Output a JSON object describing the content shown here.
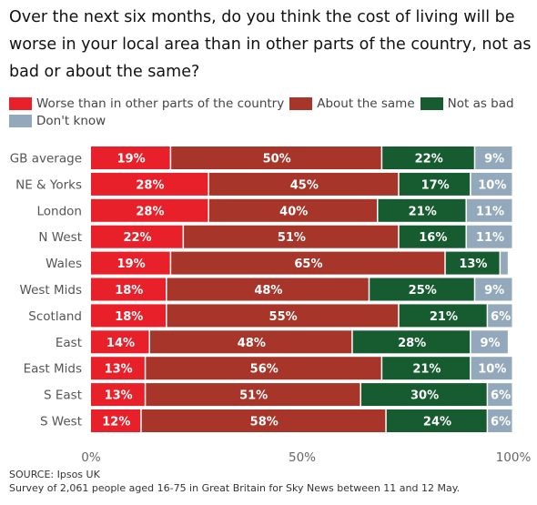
{
  "title": "Over the next six months, do you think the cost of living will be worse in your local area than in other parts of the country, not as bad or about the same?",
  "source_line": "SOURCE: Ipsos UK",
  "note_line": "Survey of 2,061 people aged 16-75 in Great Britain for Sky News between 11 and 12 May.",
  "chart_data": {
    "type": "bar",
    "orientation": "horizontal",
    "stacked": true,
    "categories": [
      "GB average",
      "NE & Yorks",
      "London",
      "N West",
      "Wales",
      "West Mids",
      "Scotland",
      "East",
      "East Mids",
      "S East",
      "S West"
    ],
    "series": [
      {
        "name": "Worse than in other parts of the country",
        "color": "#e8202a",
        "values": [
          19,
          28,
          28,
          22,
          19,
          18,
          18,
          14,
          13,
          13,
          12
        ],
        "labels": [
          "19%",
          "28%",
          "28%",
          "22%",
          "19%",
          "18%",
          "18%",
          "14%",
          "13%",
          "13%",
          "12%"
        ]
      },
      {
        "name": "About the same",
        "color": "#a8352a",
        "values": [
          50,
          45,
          40,
          51,
          65,
          48,
          55,
          48,
          56,
          51,
          58
        ],
        "labels": [
          "50%",
          "45%",
          "40%",
          "51%",
          "65%",
          "48%",
          "55%",
          "48%",
          "56%",
          "51%",
          "58%"
        ]
      },
      {
        "name": "Not as bad",
        "color": "#165c30",
        "values": [
          22,
          17,
          21,
          16,
          13,
          25,
          21,
          28,
          21,
          30,
          24
        ],
        "labels": [
          "22%",
          "17%",
          "21%",
          "16%",
          "13%",
          "25%",
          "21%",
          "28%",
          "21%",
          "30%",
          "24%"
        ]
      },
      {
        "name": "Don't know",
        "color": "#93a9bb",
        "values": [
          9,
          10,
          11,
          11,
          2,
          9,
          6,
          9,
          10,
          6,
          6
        ],
        "labels": [
          "9%",
          "10%",
          "11%",
          "11%",
          "",
          "9%",
          "6%",
          "9%",
          "10%",
          "6%",
          "6%"
        ]
      }
    ],
    "xlim": [
      0,
      100
    ],
    "x_ticks": [
      0,
      50,
      100
    ],
    "x_tick_labels": [
      "0%",
      "50%",
      "100%"
    ],
    "legend_position": "top",
    "grid": false
  }
}
